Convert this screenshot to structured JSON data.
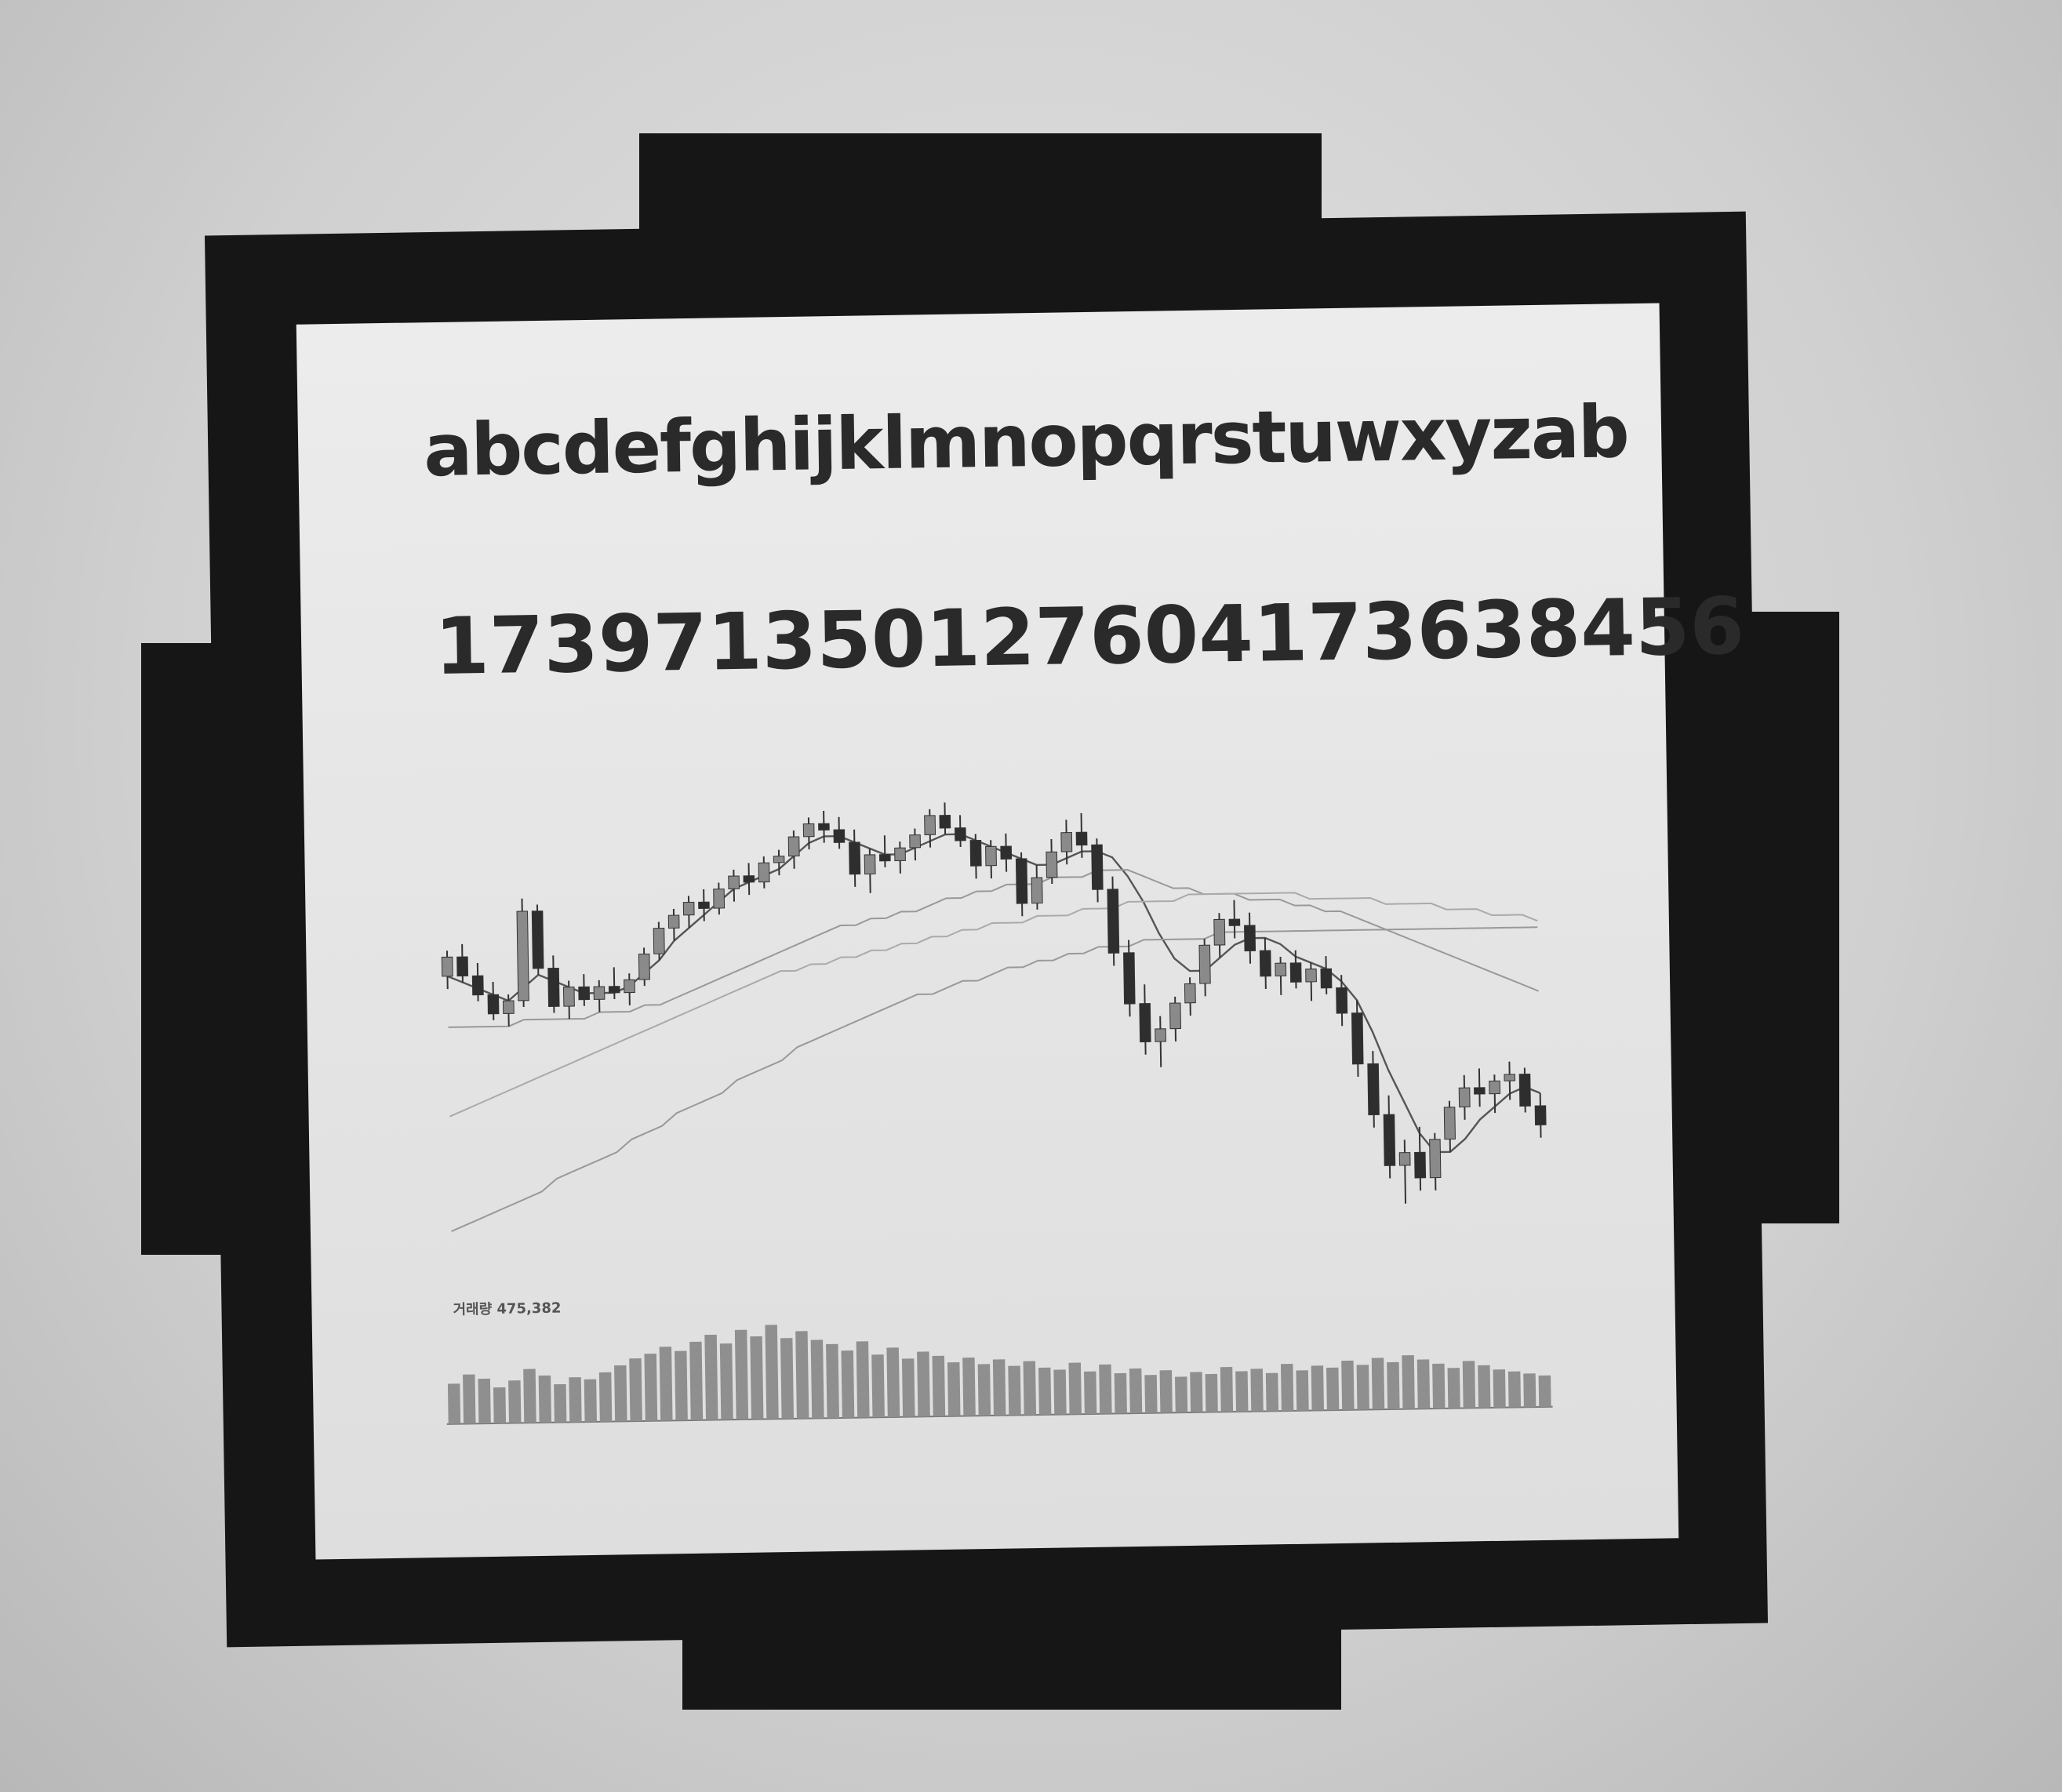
{
  "screen": {
    "alphabet": "abcdefghijklmnopqrstuwxyzab",
    "numbers": "173971350127604173638456"
  },
  "chart_data": {
    "type": "candlestick",
    "volume_label": "거래량 475,382",
    "candles": [
      [
        100,
        104,
        98,
        103
      ],
      [
        103,
        105,
        99,
        100
      ],
      [
        100,
        102,
        96,
        97
      ],
      [
        97,
        99,
        93,
        94
      ],
      [
        94,
        97,
        92,
        96
      ],
      [
        96,
        112,
        95,
        110
      ],
      [
        110,
        111,
        100,
        101
      ],
      [
        101,
        103,
        94,
        95
      ],
      [
        95,
        99,
        93,
        98
      ],
      [
        98,
        100,
        95,
        96
      ],
      [
        96,
        99,
        94,
        98
      ],
      [
        98,
        101,
        96,
        97
      ],
      [
        97,
        100,
        95,
        99
      ],
      [
        99,
        104,
        98,
        103
      ],
      [
        103,
        108,
        102,
        107
      ],
      [
        107,
        110,
        105,
        109
      ],
      [
        109,
        112,
        107,
        111
      ],
      [
        111,
        113,
        108,
        110
      ],
      [
        110,
        114,
        109,
        113
      ],
      [
        113,
        116,
        111,
        115
      ],
      [
        115,
        117,
        112,
        114
      ],
      [
        114,
        118,
        113,
        117
      ],
      [
        117,
        119,
        115,
        118
      ],
      [
        118,
        122,
        116,
        121
      ],
      [
        121,
        124,
        119,
        123
      ],
      [
        123,
        125,
        120,
        122
      ],
      [
        122,
        124,
        119,
        120
      ],
      [
        120,
        122,
        113,
        115
      ],
      [
        115,
        119,
        112,
        118
      ],
      [
        118,
        121,
        116,
        117
      ],
      [
        117,
        120,
        115,
        119
      ],
      [
        119,
        122,
        117,
        121
      ],
      [
        121,
        125,
        119,
        124
      ],
      [
        124,
        126,
        121,
        122
      ],
      [
        122,
        124,
        119,
        120
      ],
      [
        120,
        121,
        114,
        116
      ],
      [
        116,
        120,
        114,
        119
      ],
      [
        119,
        121,
        115,
        117
      ],
      [
        117,
        118,
        108,
        110
      ],
      [
        110,
        116,
        109,
        114
      ],
      [
        114,
        120,
        113,
        118
      ],
      [
        118,
        123,
        116,
        121
      ],
      [
        121,
        124,
        117,
        119
      ],
      [
        119,
        120,
        110,
        112
      ],
      [
        112,
        114,
        100,
        102
      ],
      [
        102,
        104,
        92,
        94
      ],
      [
        94,
        97,
        86,
        88
      ],
      [
        88,
        92,
        84,
        90
      ],
      [
        90,
        95,
        88,
        94
      ],
      [
        94,
        98,
        92,
        97
      ],
      [
        97,
        104,
        95,
        103
      ],
      [
        103,
        108,
        101,
        107
      ],
      [
        107,
        110,
        104,
        106
      ],
      [
        106,
        108,
        100,
        102
      ],
      [
        102,
        104,
        96,
        98
      ],
      [
        98,
        101,
        95,
        100
      ],
      [
        100,
        102,
        96,
        97
      ],
      [
        97,
        100,
        94,
        99
      ],
      [
        99,
        101,
        95,
        96
      ],
      [
        96,
        98,
        90,
        92
      ],
      [
        92,
        94,
        82,
        84
      ],
      [
        84,
        86,
        74,
        76
      ],
      [
        76,
        79,
        66,
        68
      ],
      [
        68,
        72,
        62,
        70
      ],
      [
        70,
        74,
        64,
        66
      ],
      [
        66,
        73,
        64,
        72
      ],
      [
        72,
        78,
        70,
        77
      ],
      [
        77,
        82,
        75,
        80
      ],
      [
        80,
        83,
        77,
        79
      ],
      [
        79,
        82,
        76,
        81
      ],
      [
        81,
        84,
        78,
        82
      ],
      [
        82,
        83,
        76,
        77
      ],
      [
        77,
        79,
        72,
        74
      ]
    ],
    "ma_short": [
      100,
      99,
      98,
      97,
      96,
      98,
      100,
      99,
      98,
      97,
      97,
      97,
      98,
      100,
      102,
      105,
      107,
      109,
      111,
      113,
      114,
      115,
      116,
      118,
      120,
      121,
      121,
      120,
      119,
      118,
      118,
      119,
      120,
      121,
      121,
      120,
      119,
      118,
      117,
      116,
      116,
      117,
      118,
      118,
      117,
      114,
      110,
      105,
      101,
      99,
      99,
      101,
      103,
      104,
      104,
      103,
      101,
      100,
      99,
      97,
      94,
      89,
      83,
      78,
      73,
      70,
      70,
      72,
      75,
      77,
      79,
      80,
      79
    ],
    "ma_long": [
      92,
      92,
      92,
      92,
      92,
      93,
      93,
      93,
      93,
      93,
      94,
      94,
      94,
      95,
      95,
      96,
      97,
      98,
      99,
      100,
      101,
      102,
      103,
      104,
      105,
      106,
      107,
      107,
      108,
      108,
      109,
      109,
      110,
      111,
      111,
      112,
      112,
      113,
      113,
      113,
      114,
      114,
      114,
      115,
      115,
      115,
      114,
      113,
      112,
      112,
      111,
      111,
      111,
      110,
      110,
      110,
      109,
      109,
      108,
      108,
      107,
      106,
      105,
      104,
      103,
      102,
      101,
      100,
      99,
      98,
      97,
      96,
      95
    ],
    "ma_trend": [
      78,
      79,
      80,
      81,
      82,
      83,
      84,
      85,
      86,
      87,
      88,
      89,
      90,
      91,
      92,
      93,
      94,
      95,
      96,
      97,
      98,
      99,
      100,
      100,
      101,
      101,
      102,
      102,
      103,
      103,
      104,
      104,
      105,
      105,
      106,
      106,
      107,
      107,
      107,
      108,
      108,
      108,
      109,
      109,
      109,
      110,
      110,
      110,
      110,
      111,
      111,
      111,
      111,
      111,
      111,
      111,
      111,
      110,
      110,
      110,
      110,
      110,
      109,
      109,
      109,
      109,
      108,
      108,
      108,
      107,
      107,
      107,
      106
    ],
    "ma_slow": [
      60,
      61,
      62,
      63,
      64,
      65,
      66,
      68,
      69,
      70,
      71,
      72,
      74,
      75,
      76,
      78,
      79,
      80,
      81,
      83,
      84,
      85,
      86,
      88,
      89,
      90,
      91,
      92,
      93,
      94,
      95,
      96,
      96,
      97,
      98,
      98,
      99,
      100,
      100,
      101,
      101,
      102,
      102,
      103,
      103,
      103,
      104,
      104,
      104,
      104,
      104,
      105,
      105,
      105,
      105,
      105,
      105,
      105,
      105,
      105,
      105,
      105,
      105,
      105,
      105,
      105,
      105,
      105,
      105,
      105,
      105,
      105,
      105
    ],
    "volume": [
      18,
      22,
      20,
      16,
      19,
      24,
      21,
      17,
      20,
      19,
      22,
      25,
      28,
      30,
      33,
      31,
      35,
      38,
      34,
      40,
      37,
      42,
      36,
      39,
      35,
      33,
      30,
      34,
      28,
      31,
      26,
      29,
      27,
      24,
      26,
      23,
      25,
      22,
      24,
      21,
      20,
      23,
      19,
      22,
      18,
      20,
      17,
      19,
      16,
      18,
      17,
      20,
      18,
      19,
      17,
      21,
      18,
      20,
      19,
      22,
      20,
      23,
      21,
      24,
      22,
      20,
      18,
      21,
      19,
      17,
      16,
      15,
      14
    ],
    "ylim": [
      55,
      130
    ]
  }
}
